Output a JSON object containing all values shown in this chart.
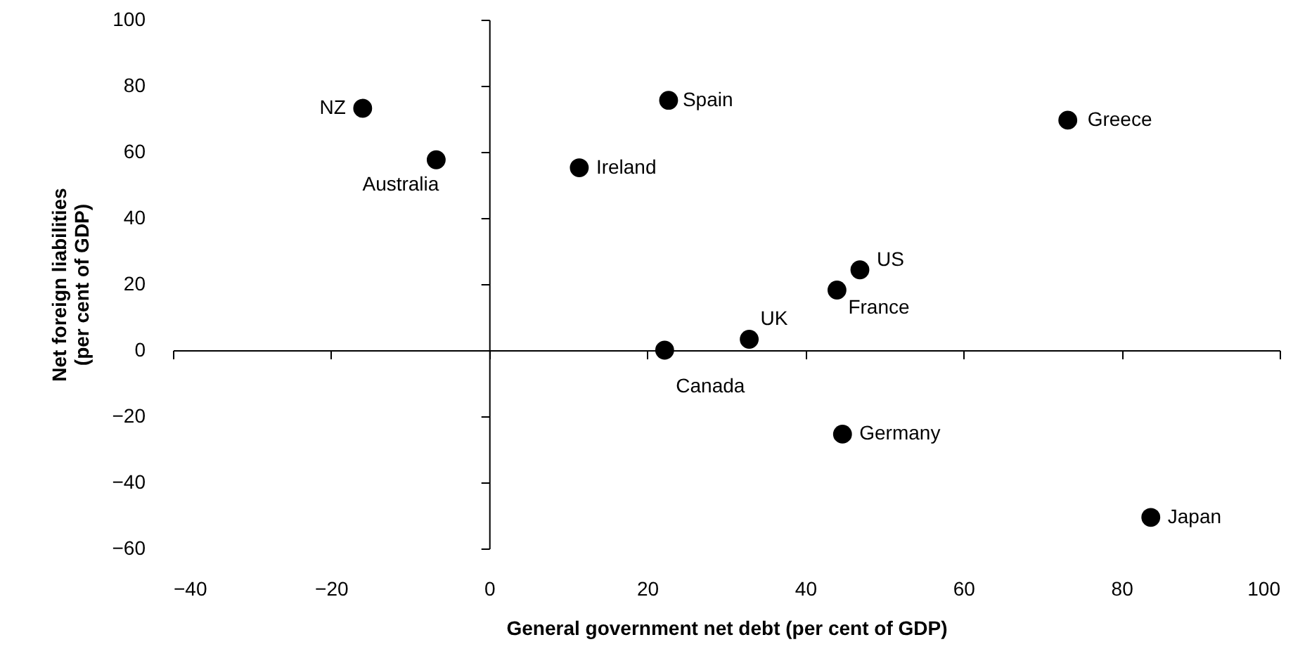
{
  "chart_data": {
    "type": "scatter",
    "xlabel": "General government net debt (per cent of GDP)",
    "ylabel": "Net foreign liabilities\n(per cent of GDP)",
    "x": [
      -16.0,
      -6.7,
      11.4,
      22.7,
      73.2,
      46.9,
      44.0,
      32.9,
      22.2,
      44.7,
      83.7
    ],
    "series": [
      {
        "color": "#000000",
        "values": [
          73.2,
          57.6,
          55.2,
          75.6,
          69.6,
          24.3,
          18.2,
          3.3,
          0,
          -25.4,
          -50.6
        ]
      }
    ],
    "annotations": [
      {
        "text": "NZ",
        "x": -16.0,
        "y": 73.2
      },
      {
        "text": "Australia",
        "x": -6.7,
        "y": 57.6
      },
      {
        "text": "Ireland",
        "x": 11.4,
        "y": 55.2
      },
      {
        "text": "Spain",
        "x": 22.7,
        "y": 75.6
      },
      {
        "text": "Greece",
        "x": 73.2,
        "y": 69.6
      },
      {
        "text": "US",
        "x": 46.9,
        "y": 24.3
      },
      {
        "text": "France",
        "x": 44.0,
        "y": 18.2
      },
      {
        "text": "UK",
        "x": 32.9,
        "y": 3.3
      },
      {
        "text": "Canada",
        "x": 22.2,
        "y": 0
      },
      {
        "text": "Germany",
        "x": 44.7,
        "y": -25.4
      },
      {
        "text": "Japan",
        "x": 83.7,
        "y": -50.6
      }
    ],
    "xlim": [
      -40,
      100
    ],
    "xticks": [
      -40,
      -20,
      0,
      20,
      40,
      60,
      80,
      100
    ],
    "ylim": [
      -60,
      100
    ],
    "yticks": [
      -60,
      -40,
      -20,
      0,
      20,
      40,
      60,
      80,
      100
    ],
    "marker": "circle"
  }
}
